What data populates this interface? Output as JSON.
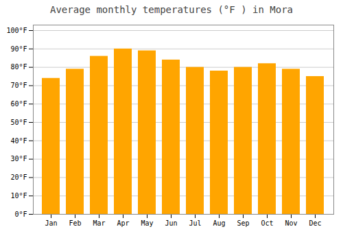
{
  "chart_data": {
    "type": "bar",
    "title": "Average monthly temperatures (°F ) in Mora",
    "categories": [
      "Jan",
      "Feb",
      "Mar",
      "Apr",
      "May",
      "Jun",
      "Jul",
      "Aug",
      "Sep",
      "Oct",
      "Nov",
      "Dec"
    ],
    "values": [
      74,
      79,
      86,
      90,
      89,
      84,
      80,
      78,
      80,
      82,
      79,
      75
    ],
    "color": "#FFA500",
    "ylim": [
      0,
      103
    ],
    "yticks": [
      {
        "value": 0,
        "label": "0°F"
      },
      {
        "value": 10,
        "label": "10°F"
      },
      {
        "value": 20,
        "label": "20°F"
      },
      {
        "value": 30,
        "label": "30°F"
      },
      {
        "value": 40,
        "label": "40°F"
      },
      {
        "value": 50,
        "label": "50°F"
      },
      {
        "value": 60,
        "label": "60°F"
      },
      {
        "value": 70,
        "label": "70°F"
      },
      {
        "value": 80,
        "label": "80°F"
      },
      {
        "value": 90,
        "label": "90°F"
      },
      {
        "value": 100,
        "label": "100°F"
      }
    ],
    "grid": true
  }
}
